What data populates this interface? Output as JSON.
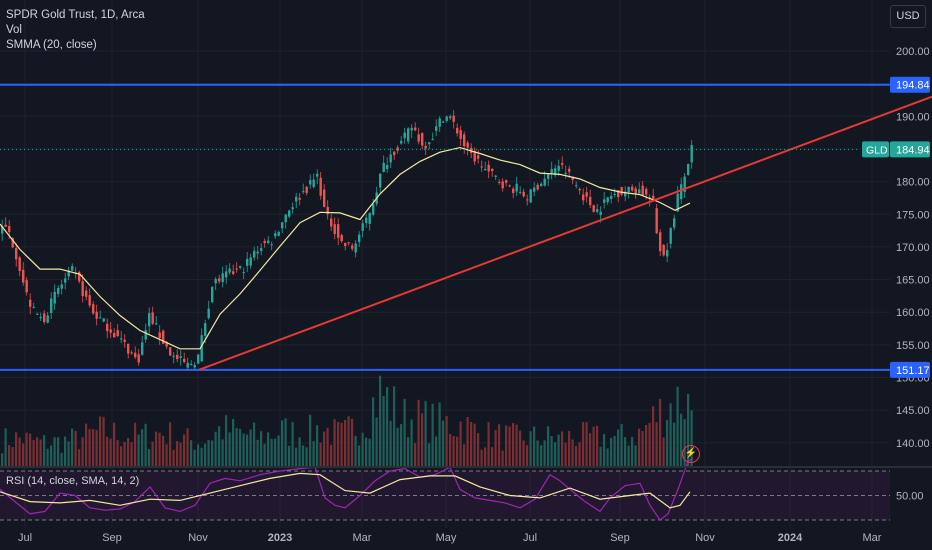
{
  "legend": {
    "symbol_line": "SPDR Gold Trust, 1D, Arca",
    "volume_label": "Vol",
    "smma_label": "SMMA (20, close)"
  },
  "rsi_legend": "RSI (14, close, SMA, 14, 2)",
  "currency_button": "USD",
  "icons": {
    "alert": "lightning-icon"
  },
  "colors": {
    "background": "#131722",
    "grid": "#1e222d",
    "up": "#26a69a",
    "down": "#ef5350",
    "smma": "#f5e8a3",
    "trendline": "#e53935",
    "hline": "#2962ff",
    "rsi": "#9c27b0",
    "rsi_ma": "#f5e8a3"
  },
  "chart_data": {
    "type": "candlestick",
    "price_axis": {
      "ticks": [
        140,
        145,
        150,
        155,
        160,
        165,
        170,
        175,
        180,
        185,
        190,
        195,
        200
      ],
      "labels": [
        "140.00",
        "145.00",
        "150.00",
        "155.00",
        "160.00",
        "165.00",
        "170.00",
        "175.00",
        "180.00",
        "",
        "190.00",
        "",
        "200.00"
      ]
    },
    "time_axis": [
      "Jul",
      "Sep",
      "Nov",
      "2023",
      "Mar",
      "May",
      "Jul",
      "Sep",
      "Nov",
      "2024",
      "Mar"
    ],
    "price_path": [
      [
        0,
        172.7
      ],
      [
        10,
        172.8
      ],
      [
        20,
        168.2
      ],
      [
        28,
        163
      ],
      [
        35,
        160.3
      ],
      [
        45,
        158.7
      ],
      [
        60,
        163.5
      ],
      [
        75,
        166.4
      ],
      [
        85,
        163.1
      ],
      [
        95,
        160
      ],
      [
        110,
        157.8
      ],
      [
        125,
        155.4
      ],
      [
        140,
        152.4
      ],
      [
        152,
        159.7
      ],
      [
        163,
        156.1
      ],
      [
        175,
        153.2
      ],
      [
        190,
        151.9
      ],
      [
        200,
        152.9
      ],
      [
        205,
        156.7
      ],
      [
        215,
        164.4
      ],
      [
        230,
        165.8
      ],
      [
        245,
        166.7
      ],
      [
        262,
        170.1
      ],
      [
        275,
        171.1
      ],
      [
        290,
        175.6
      ],
      [
        300,
        177.5
      ],
      [
        312,
        179.5
      ],
      [
        320,
        181
      ],
      [
        328,
        174.6
      ],
      [
        335,
        173.3
      ],
      [
        345,
        170.4
      ],
      [
        355,
        169.8
      ],
      [
        365,
        172.9
      ],
      [
        375,
        176.7
      ],
      [
        385,
        182.2
      ],
      [
        395,
        184.6
      ],
      [
        405,
        186.2
      ],
      [
        415,
        188.6
      ],
      [
        425,
        185.3
      ],
      [
        435,
        187.1
      ],
      [
        445,
        190
      ],
      [
        452,
        189.9
      ],
      [
        460,
        187.6
      ],
      [
        470,
        184.5
      ],
      [
        480,
        183.2
      ],
      [
        490,
        181.4
      ],
      [
        500,
        180.4
      ],
      [
        510,
        179.1
      ],
      [
        520,
        178.9
      ],
      [
        530,
        177.5
      ],
      [
        540,
        179.5
      ],
      [
        550,
        180.8
      ],
      [
        560,
        182.7
      ],
      [
        570,
        181.3
      ],
      [
        580,
        179.1
      ],
      [
        590,
        176.9
      ],
      [
        600,
        175.6
      ],
      [
        610,
        177.4
      ],
      [
        620,
        178.4
      ],
      [
        630,
        178.6
      ],
      [
        640,
        178.9
      ],
      [
        650,
        177.6
      ],
      [
        655,
        176.9
      ],
      [
        660,
        170.9
      ],
      [
        665,
        168.6
      ],
      [
        670,
        170.4
      ],
      [
        675,
        173.7
      ],
      [
        680,
        177.9
      ],
      [
        685,
        179.5
      ],
      [
        690,
        182.7
      ],
      [
        693,
        184.9
      ]
    ],
    "smma_path": [
      [
        0,
        173.5
      ],
      [
        20,
        169.6
      ],
      [
        40,
        166.6
      ],
      [
        60,
        166.6
      ],
      [
        80,
        165.8
      ],
      [
        100,
        162.4
      ],
      [
        120,
        159.5
      ],
      [
        140,
        157.2
      ],
      [
        160,
        155.8
      ],
      [
        180,
        154.4
      ],
      [
        200,
        154.4
      ],
      [
        220,
        159.7
      ],
      [
        240,
        162.8
      ],
      [
        260,
        166.4
      ],
      [
        280,
        170.1
      ],
      [
        300,
        173.7
      ],
      [
        320,
        175.3
      ],
      [
        340,
        175.2
      ],
      [
        360,
        174.2
      ],
      [
        380,
        178.1
      ],
      [
        400,
        181.1
      ],
      [
        420,
        183.1
      ],
      [
        440,
        184.5
      ],
      [
        460,
        185.2
      ],
      [
        480,
        184.3
      ],
      [
        500,
        183.3
      ],
      [
        520,
        182.6
      ],
      [
        540,
        181.3
      ],
      [
        560,
        181.1
      ],
      [
        580,
        180.4
      ],
      [
        600,
        179.1
      ],
      [
        620,
        178.4
      ],
      [
        640,
        178
      ],
      [
        660,
        176.8
      ],
      [
        675,
        175.6
      ],
      [
        690,
        176.7
      ]
    ],
    "horizontal_levels": [
      {
        "value": 194.84,
        "label": "194.84"
      },
      {
        "value": 151.17,
        "label": "151.17"
      }
    ],
    "trendline": {
      "from": [
        199,
        151.17
      ],
      "to": [
        932,
        193
      ]
    },
    "last_price": {
      "symbol": "GLD",
      "value": 184.94,
      "label": "184.94"
    },
    "volume_path": [
      [
        0,
        28
      ],
      [
        20,
        30
      ],
      [
        40,
        25
      ],
      [
        60,
        26
      ],
      [
        80,
        30
      ],
      [
        100,
        38
      ],
      [
        120,
        33
      ],
      [
        140,
        32
      ],
      [
        160,
        36
      ],
      [
        180,
        30
      ],
      [
        200,
        25
      ],
      [
        220,
        40
      ],
      [
        240,
        35
      ],
      [
        260,
        31
      ],
      [
        280,
        38
      ],
      [
        300,
        34
      ],
      [
        320,
        40
      ],
      [
        340,
        33
      ],
      [
        360,
        46
      ],
      [
        380,
        80
      ],
      [
        400,
        52
      ],
      [
        420,
        50
      ],
      [
        440,
        46
      ],
      [
        460,
        45
      ],
      [
        480,
        34
      ],
      [
        500,
        32
      ],
      [
        520,
        30
      ],
      [
        540,
        31
      ],
      [
        560,
        30
      ],
      [
        580,
        32
      ],
      [
        600,
        30
      ],
      [
        620,
        31
      ],
      [
        640,
        35
      ],
      [
        655,
        55
      ],
      [
        665,
        62
      ],
      [
        680,
        72
      ],
      [
        690,
        65
      ]
    ],
    "rsi_path": [
      [
        0,
        55
      ],
      [
        15,
        45
      ],
      [
        30,
        35
      ],
      [
        45,
        37
      ],
      [
        60,
        52
      ],
      [
        75,
        50
      ],
      [
        90,
        40
      ],
      [
        105,
        38
      ],
      [
        120,
        39
      ],
      [
        135,
        45
      ],
      [
        150,
        57
      ],
      [
        165,
        40
      ],
      [
        180,
        37
      ],
      [
        195,
        42
      ],
      [
        210,
        60
      ],
      [
        225,
        64
      ],
      [
        240,
        62
      ],
      [
        260,
        67
      ],
      [
        280,
        70
      ],
      [
        300,
        72
      ],
      [
        315,
        73
      ],
      [
        325,
        48
      ],
      [
        335,
        42
      ],
      [
        345,
        40
      ],
      [
        360,
        50
      ],
      [
        375,
        62
      ],
      [
        390,
        70
      ],
      [
        405,
        72
      ],
      [
        420,
        65
      ],
      [
        435,
        67
      ],
      [
        450,
        73
      ],
      [
        460,
        55
      ],
      [
        475,
        48
      ],
      [
        490,
        46
      ],
      [
        505,
        44
      ],
      [
        520,
        40
      ],
      [
        535,
        47
      ],
      [
        550,
        67
      ],
      [
        560,
        62
      ],
      [
        570,
        55
      ],
      [
        585,
        45
      ],
      [
        600,
        37
      ],
      [
        610,
        48
      ],
      [
        625,
        58
      ],
      [
        640,
        60
      ],
      [
        650,
        42
      ],
      [
        660,
        30
      ],
      [
        668,
        35
      ],
      [
        678,
        55
      ],
      [
        688,
        78
      ],
      [
        693,
        80
      ]
    ],
    "rsi_ma_path": [
      [
        0,
        53
      ],
      [
        30,
        45
      ],
      [
        60,
        44
      ],
      [
        90,
        46
      ],
      [
        120,
        42
      ],
      [
        150,
        47
      ],
      [
        180,
        46
      ],
      [
        210,
        52
      ],
      [
        240,
        58
      ],
      [
        270,
        64
      ],
      [
        300,
        68
      ],
      [
        320,
        67
      ],
      [
        345,
        54
      ],
      [
        370,
        52
      ],
      [
        400,
        63
      ],
      [
        430,
        66
      ],
      [
        455,
        66
      ],
      [
        480,
        57
      ],
      [
        510,
        50
      ],
      [
        540,
        48
      ],
      [
        570,
        56
      ],
      [
        600,
        47
      ],
      [
        630,
        50
      ],
      [
        650,
        52
      ],
      [
        670,
        40
      ],
      [
        680,
        42
      ],
      [
        690,
        53
      ]
    ],
    "rsi_levels": [
      70,
      50,
      30
    ],
    "rsi_axis_label": "50.00",
    "grid": true
  }
}
